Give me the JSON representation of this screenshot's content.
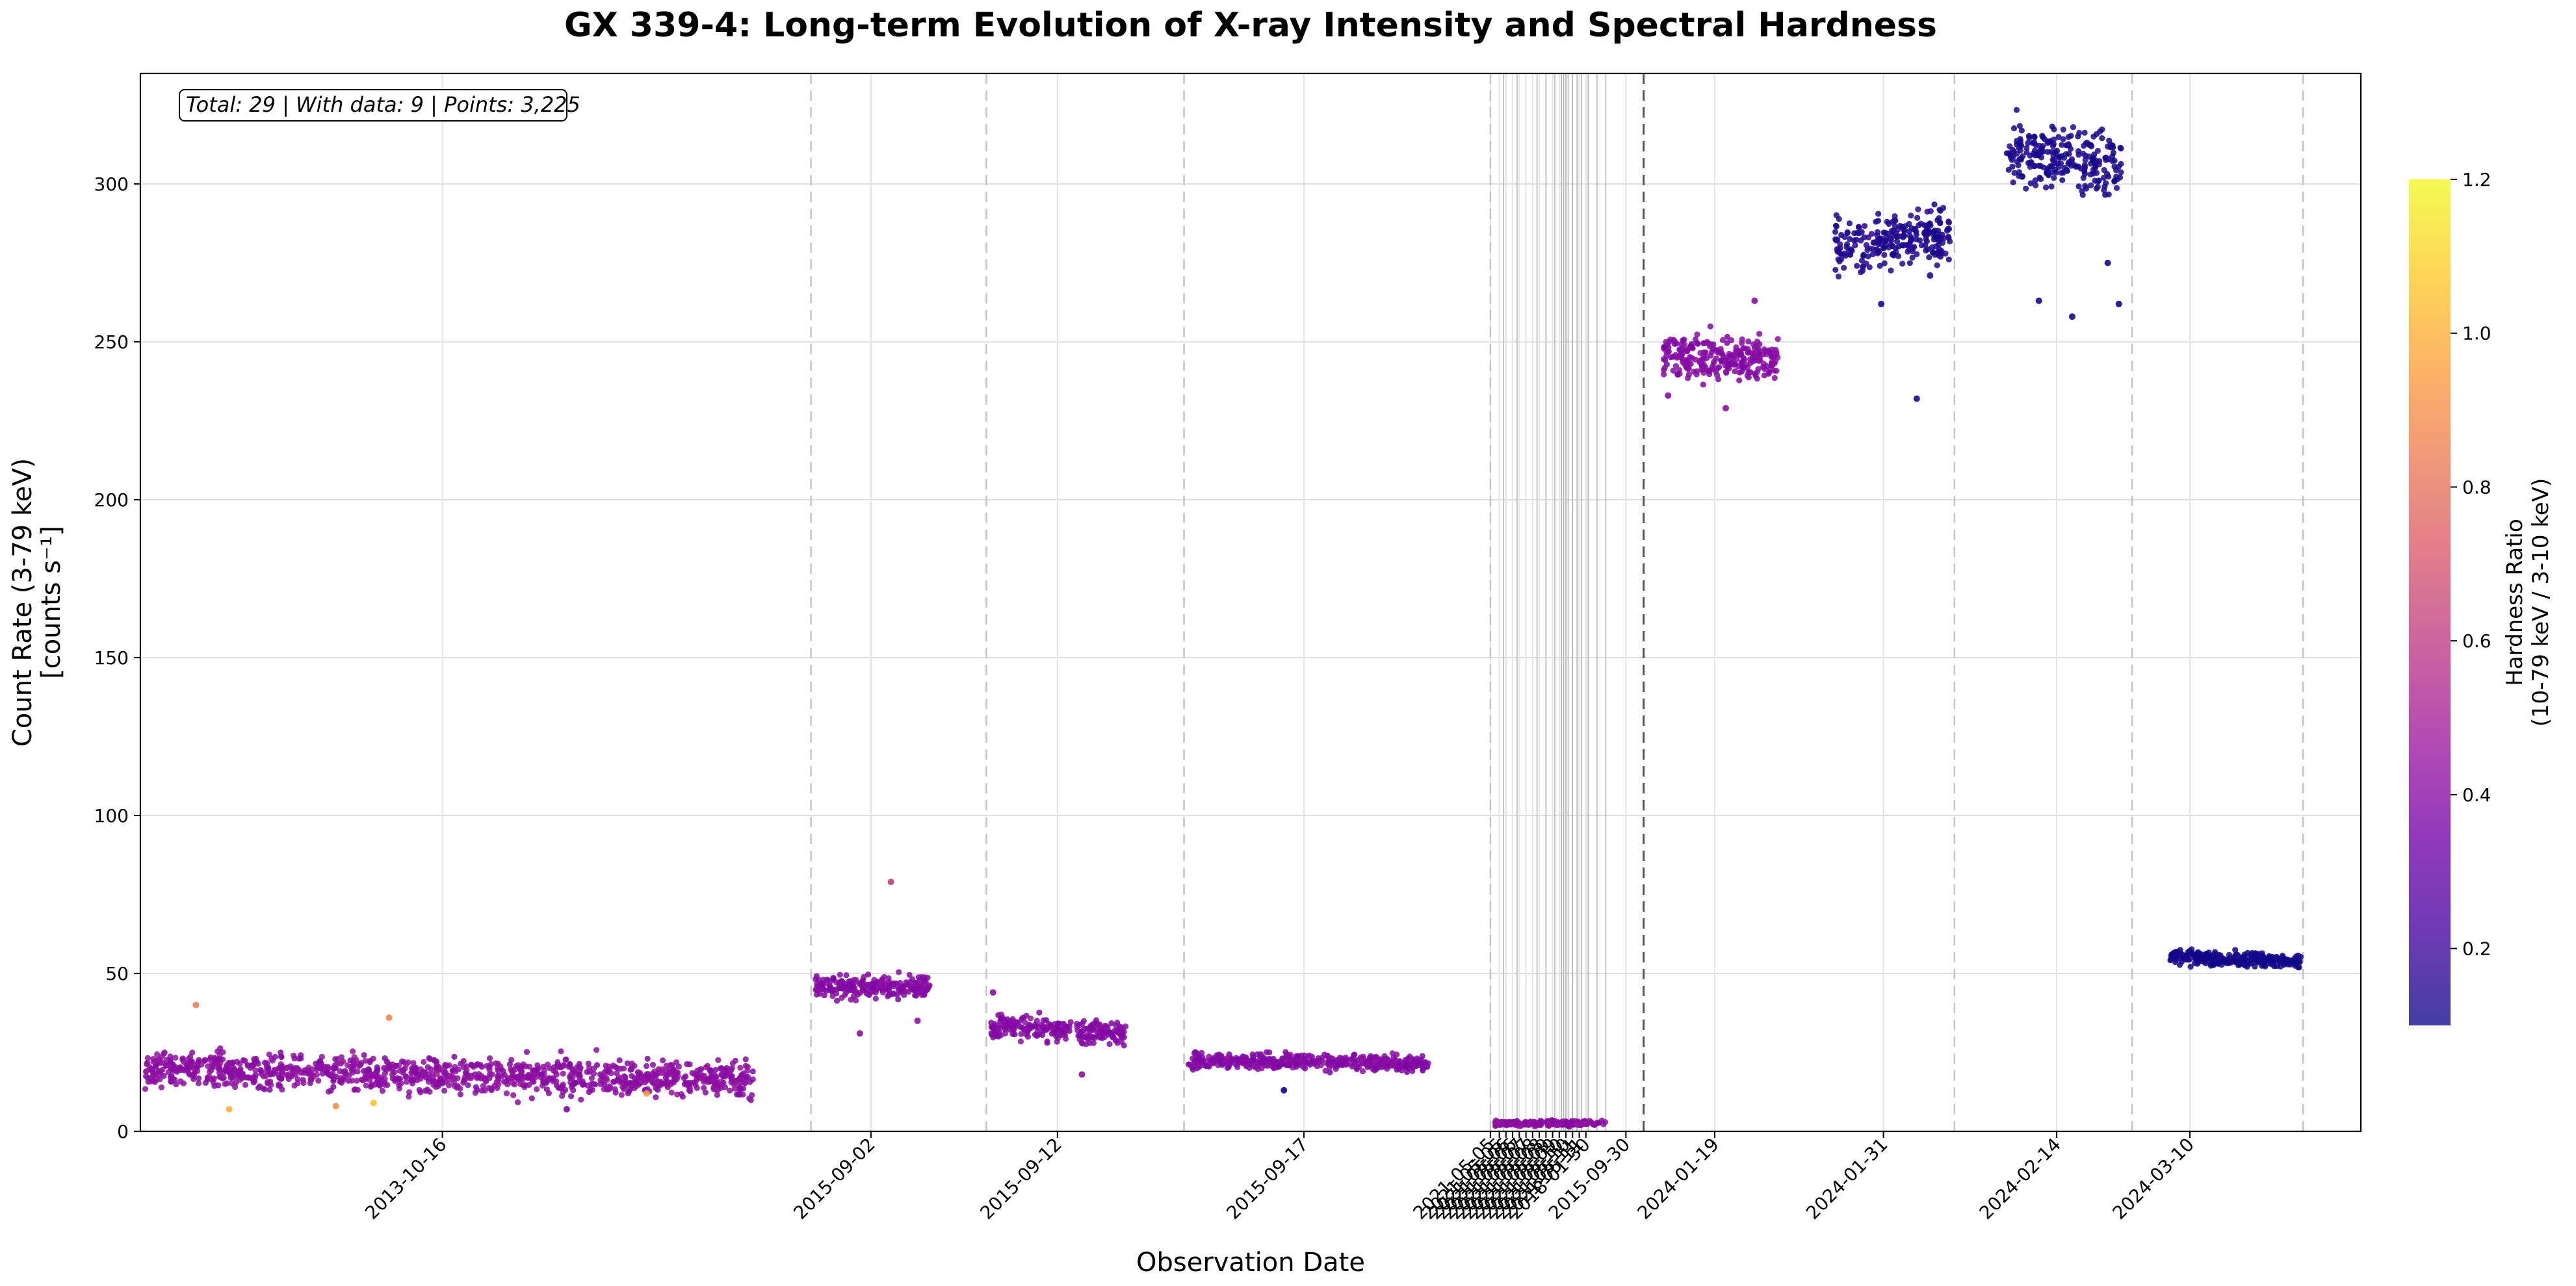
{
  "chart_data": {
    "type": "scatter",
    "title": "GX 339-4: Long-term Evolution of X-ray Intensity and Spectral Hardness",
    "xlabel": "Observation Date",
    "ylabel_line1": "Count Rate (3-79 keV)",
    "ylabel_line2": "[counts s⁻¹]",
    "ylim": [
      0,
      335
    ],
    "yticks": [
      0,
      50,
      100,
      150,
      200,
      250,
      300
    ],
    "grid": true,
    "stats_box": "Total: 29 | With data: 9 | Points: 3,225",
    "colorbar": {
      "label_line1": "Hardness Ratio",
      "label_line2": "(10-79 keV / 3-10 keV)",
      "colormap": "plasma",
      "range": [
        0.1,
        1.2
      ],
      "ticks": [
        0.2,
        0.4,
        0.6,
        0.8,
        1.0,
        1.2
      ],
      "colors": [
        "#0d0887",
        "#46039f",
        "#7201a8",
        "#9c179e",
        "#bd3786",
        "#d8576b",
        "#ed7953",
        "#fb9f3a",
        "#fdca26",
        "#f0f921"
      ]
    },
    "x_unit": "sequential observation-time index (0-1000)",
    "x_range": [
      0,
      1000
    ],
    "obs_dividers": [
      302,
      381,
      470,
      608,
      677,
      817,
      897,
      974
    ],
    "short_obs_lines": [
      614,
      620,
      629,
      633,
      637,
      640,
      641,
      642,
      643,
      645,
      647,
      649,
      652,
      656,
      660
    ],
    "x_ticks": [
      {
        "label": "2013-10-16",
        "x": 136
      },
      {
        "label": "2015-09-02",
        "x": 329
      },
      {
        "label": "2015-09-12",
        "x": 413
      },
      {
        "label": "2015-09-17",
        "x": 524
      },
      {
        "label": "2021-05-05",
        "x": 608
      },
      {
        "label": "2021-05-05",
        "x": 612
      },
      {
        "label": "2021-05-06",
        "x": 615
      },
      {
        "label": "2021-05-06",
        "x": 618
      },
      {
        "label": "2021-05-07",
        "x": 621
      },
      {
        "label": "2021-05-07",
        "x": 624
      },
      {
        "label": "2021-05-08",
        "x": 627
      },
      {
        "label": "2021-05-08",
        "x": 630
      },
      {
        "label": "2021-05-09",
        "x": 633
      },
      {
        "label": "2021-05-09",
        "x": 636
      },
      {
        "label": "2021-05-10",
        "x": 639
      },
      {
        "label": "2021-05-10",
        "x": 642
      },
      {
        "label": "2021-05-11",
        "x": 645
      },
      {
        "label": "2021-05-11",
        "x": 648
      },
      {
        "label": "2018-01-30",
        "x": 651
      },
      {
        "label": "2015-09-30",
        "x": 669
      },
      {
        "label": "2024-01-19",
        "x": 709
      },
      {
        "label": "2024-01-31",
        "x": 785
      },
      {
        "label": "2024-02-14",
        "x": 863
      },
      {
        "label": "2024-03-10",
        "x": 923
      }
    ],
    "series": [
      {
        "name": "2013-10-16",
        "x_start": 2,
        "x_end": 276,
        "mean_rate": 18,
        "rate_spread": 4,
        "trend": -3,
        "hardness": 0.42,
        "n_points": 1100,
        "outliers": [
          [
            25,
            40,
            0.85
          ],
          [
            40,
            7,
            1.0
          ],
          [
            88,
            8,
            0.9
          ],
          [
            105,
            9,
            1.05
          ],
          [
            112,
            36,
            0.88
          ],
          [
            192,
            7,
            0.38
          ],
          [
            228,
            12,
            0.95
          ]
        ]
      },
      {
        "name": "2015-09-02",
        "x_start": 304,
        "x_end": 356,
        "mean_rate": 46,
        "rate_spread": 2.5,
        "trend": 0,
        "hardness": 0.4,
        "n_points": 230,
        "outliers": [
          [
            324,
            31,
            0.42
          ],
          [
            338,
            79,
            0.62
          ],
          [
            350,
            35,
            0.42
          ]
        ]
      },
      {
        "name": "2015-09-12",
        "x_start": 383,
        "x_end": 444,
        "mean_rate": 32,
        "rate_spread": 2.5,
        "trend": -3,
        "hardness": 0.4,
        "n_points": 260,
        "outliers": [
          [
            384,
            44,
            0.42
          ],
          [
            424,
            18,
            0.42
          ]
        ]
      },
      {
        "name": "2015-09-17",
        "x_start": 472,
        "x_end": 580,
        "mean_rate": 22,
        "rate_spread": 1.8,
        "trend": -1,
        "hardness": 0.4,
        "n_points": 420,
        "outliers": [
          [
            515,
            13,
            0.12
          ]
        ]
      },
      {
        "name": "2021-05",
        "x_start": 610,
        "x_end": 660,
        "mean_rate": 2.5,
        "rate_spread": 0.6,
        "trend": 0,
        "hardness": 0.42,
        "n_points": 180,
        "outliers": []
      },
      {
        "name": "2024-01-19",
        "x_start": 686,
        "x_end": 738,
        "mean_rate": 245,
        "rate_spread": 5,
        "trend": 0,
        "hardness": 0.4,
        "n_points": 260,
        "outliers": [
          [
            688,
            233,
            0.4
          ],
          [
            714,
            229,
            0.4
          ],
          [
            727,
            263,
            0.4
          ]
        ]
      },
      {
        "name": "2024-01-31",
        "x_start": 763,
        "x_end": 815,
        "mean_rate": 282,
        "rate_spread": 6,
        "trend": 5,
        "hardness": 0.14,
        "n_points": 240,
        "outliers": [
          [
            784,
            262,
            0.14
          ],
          [
            800,
            232,
            0.14
          ],
          [
            806,
            271,
            0.14
          ]
        ]
      },
      {
        "name": "2024-02-14",
        "x_start": 840,
        "x_end": 892,
        "mean_rate": 308,
        "rate_spread": 7,
        "trend": -5,
        "hardness": 0.13,
        "n_points": 240,
        "outliers": [
          [
            855,
            263,
            0.12
          ],
          [
            870,
            258,
            0.12
          ],
          [
            886,
            275,
            0.12
          ],
          [
            891,
            262,
            0.12
          ]
        ]
      },
      {
        "name": "2024-03-10",
        "x_start": 914,
        "x_end": 973,
        "mean_rate": 54.5,
        "rate_spread": 1.5,
        "trend": -1.5,
        "hardness": 0.11,
        "n_points": 290,
        "outliers": []
      }
    ]
  }
}
